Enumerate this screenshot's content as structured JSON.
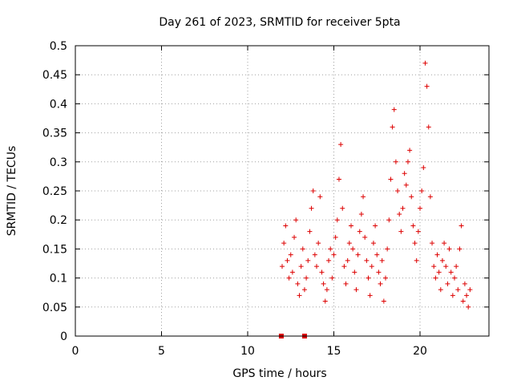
{
  "chart_data": {
    "type": "scatter",
    "title": "Day 261 of 2023, SRMTID for receiver 5pta",
    "xlabel": "GPS time / hours",
    "ylabel": "SRMTID / TECUs",
    "xlim": [
      0,
      24
    ],
    "ylim": [
      0,
      0.5
    ],
    "grid": true,
    "x_ticks": [
      0,
      5,
      10,
      15,
      20
    ],
    "y_ticks": [
      0,
      0.05,
      0.1,
      0.15,
      0.2,
      0.25,
      0.3,
      0.35,
      0.4,
      0.45,
      0.5
    ],
    "x_tick_labels": [
      "0",
      "5",
      "10",
      "15",
      "20"
    ],
    "y_tick_labels": [
      "0",
      "0.05",
      "0.1",
      "0.15",
      "0.2",
      "0.25",
      "0.3",
      "0.35",
      "0.4",
      "0.45",
      "0.5"
    ],
    "marker": "+",
    "color": "#dd0000",
    "series": [
      {
        "name": "SRMTID",
        "points": [
          [
            12.0,
            0.12
          ],
          [
            12.1,
            0.16
          ],
          [
            12.2,
            0.19
          ],
          [
            12.3,
            0.13
          ],
          [
            12.4,
            0.1
          ],
          [
            12.5,
            0.14
          ],
          [
            12.6,
            0.11
          ],
          [
            12.7,
            0.17
          ],
          [
            12.8,
            0.2
          ],
          [
            12.9,
            0.09
          ],
          [
            13.0,
            0.07
          ],
          [
            13.1,
            0.12
          ],
          [
            13.2,
            0.15
          ],
          [
            13.3,
            0.08
          ],
          [
            13.4,
            0.1
          ],
          [
            13.5,
            0.13
          ],
          [
            13.6,
            0.18
          ],
          [
            13.7,
            0.22
          ],
          [
            13.8,
            0.25
          ],
          [
            13.9,
            0.14
          ],
          [
            14.0,
            0.12
          ],
          [
            14.1,
            0.16
          ],
          [
            14.2,
            0.24
          ],
          [
            14.3,
            0.11
          ],
          [
            14.4,
            0.09
          ],
          [
            14.5,
            0.06
          ],
          [
            14.6,
            0.08
          ],
          [
            14.7,
            0.13
          ],
          [
            14.8,
            0.15
          ],
          [
            14.9,
            0.1
          ],
          [
            15.0,
            0.14
          ],
          [
            15.1,
            0.17
          ],
          [
            15.2,
            0.2
          ],
          [
            15.3,
            0.27
          ],
          [
            15.4,
            0.33
          ],
          [
            15.5,
            0.22
          ],
          [
            15.6,
            0.12
          ],
          [
            15.7,
            0.09
          ],
          [
            15.8,
            0.13
          ],
          [
            15.9,
            0.16
          ],
          [
            16.0,
            0.19
          ],
          [
            16.1,
            0.15
          ],
          [
            16.2,
            0.11
          ],
          [
            16.3,
            0.08
          ],
          [
            16.4,
            0.14
          ],
          [
            16.5,
            0.18
          ],
          [
            16.6,
            0.21
          ],
          [
            16.7,
            0.24
          ],
          [
            16.8,
            0.17
          ],
          [
            16.9,
            0.13
          ],
          [
            17.0,
            0.1
          ],
          [
            17.1,
            0.07
          ],
          [
            17.2,
            0.12
          ],
          [
            17.3,
            0.16
          ],
          [
            17.4,
            0.19
          ],
          [
            17.5,
            0.14
          ],
          [
            17.6,
            0.11
          ],
          [
            17.7,
            0.09
          ],
          [
            17.8,
            0.13
          ],
          [
            17.9,
            0.06
          ],
          [
            18.0,
            0.1
          ],
          [
            18.1,
            0.15
          ],
          [
            18.2,
            0.2
          ],
          [
            18.3,
            0.27
          ],
          [
            18.4,
            0.36
          ],
          [
            18.5,
            0.39
          ],
          [
            18.6,
            0.3
          ],
          [
            18.7,
            0.25
          ],
          [
            18.8,
            0.21
          ],
          [
            18.9,
            0.18
          ],
          [
            19.0,
            0.22
          ],
          [
            19.1,
            0.28
          ],
          [
            19.2,
            0.26
          ],
          [
            19.3,
            0.3
          ],
          [
            19.4,
            0.32
          ],
          [
            19.5,
            0.24
          ],
          [
            19.6,
            0.19
          ],
          [
            19.7,
            0.16
          ],
          [
            19.8,
            0.13
          ],
          [
            19.9,
            0.18
          ],
          [
            20.0,
            0.22
          ],
          [
            20.1,
            0.25
          ],
          [
            20.2,
            0.29
          ],
          [
            20.3,
            0.47
          ],
          [
            20.4,
            0.43
          ],
          [
            20.5,
            0.36
          ],
          [
            20.6,
            0.24
          ],
          [
            20.7,
            0.16
          ],
          [
            20.8,
            0.12
          ],
          [
            20.9,
            0.1
          ],
          [
            21.0,
            0.14
          ],
          [
            21.1,
            0.11
          ],
          [
            21.2,
            0.08
          ],
          [
            21.3,
            0.13
          ],
          [
            21.4,
            0.16
          ],
          [
            21.5,
            0.12
          ],
          [
            21.6,
            0.09
          ],
          [
            21.7,
            0.15
          ],
          [
            21.8,
            0.11
          ],
          [
            21.9,
            0.07
          ],
          [
            22.0,
            0.1
          ],
          [
            22.1,
            0.12
          ],
          [
            22.2,
            0.08
          ],
          [
            22.3,
            0.15
          ],
          [
            22.4,
            0.19
          ],
          [
            22.5,
            0.06
          ],
          [
            22.6,
            0.09
          ],
          [
            22.7,
            0.07
          ],
          [
            22.8,
            0.05
          ],
          [
            22.9,
            0.08
          ],
          [
            11.95,
            0.0
          ],
          [
            13.3,
            0.0
          ]
        ]
      }
    ]
  }
}
